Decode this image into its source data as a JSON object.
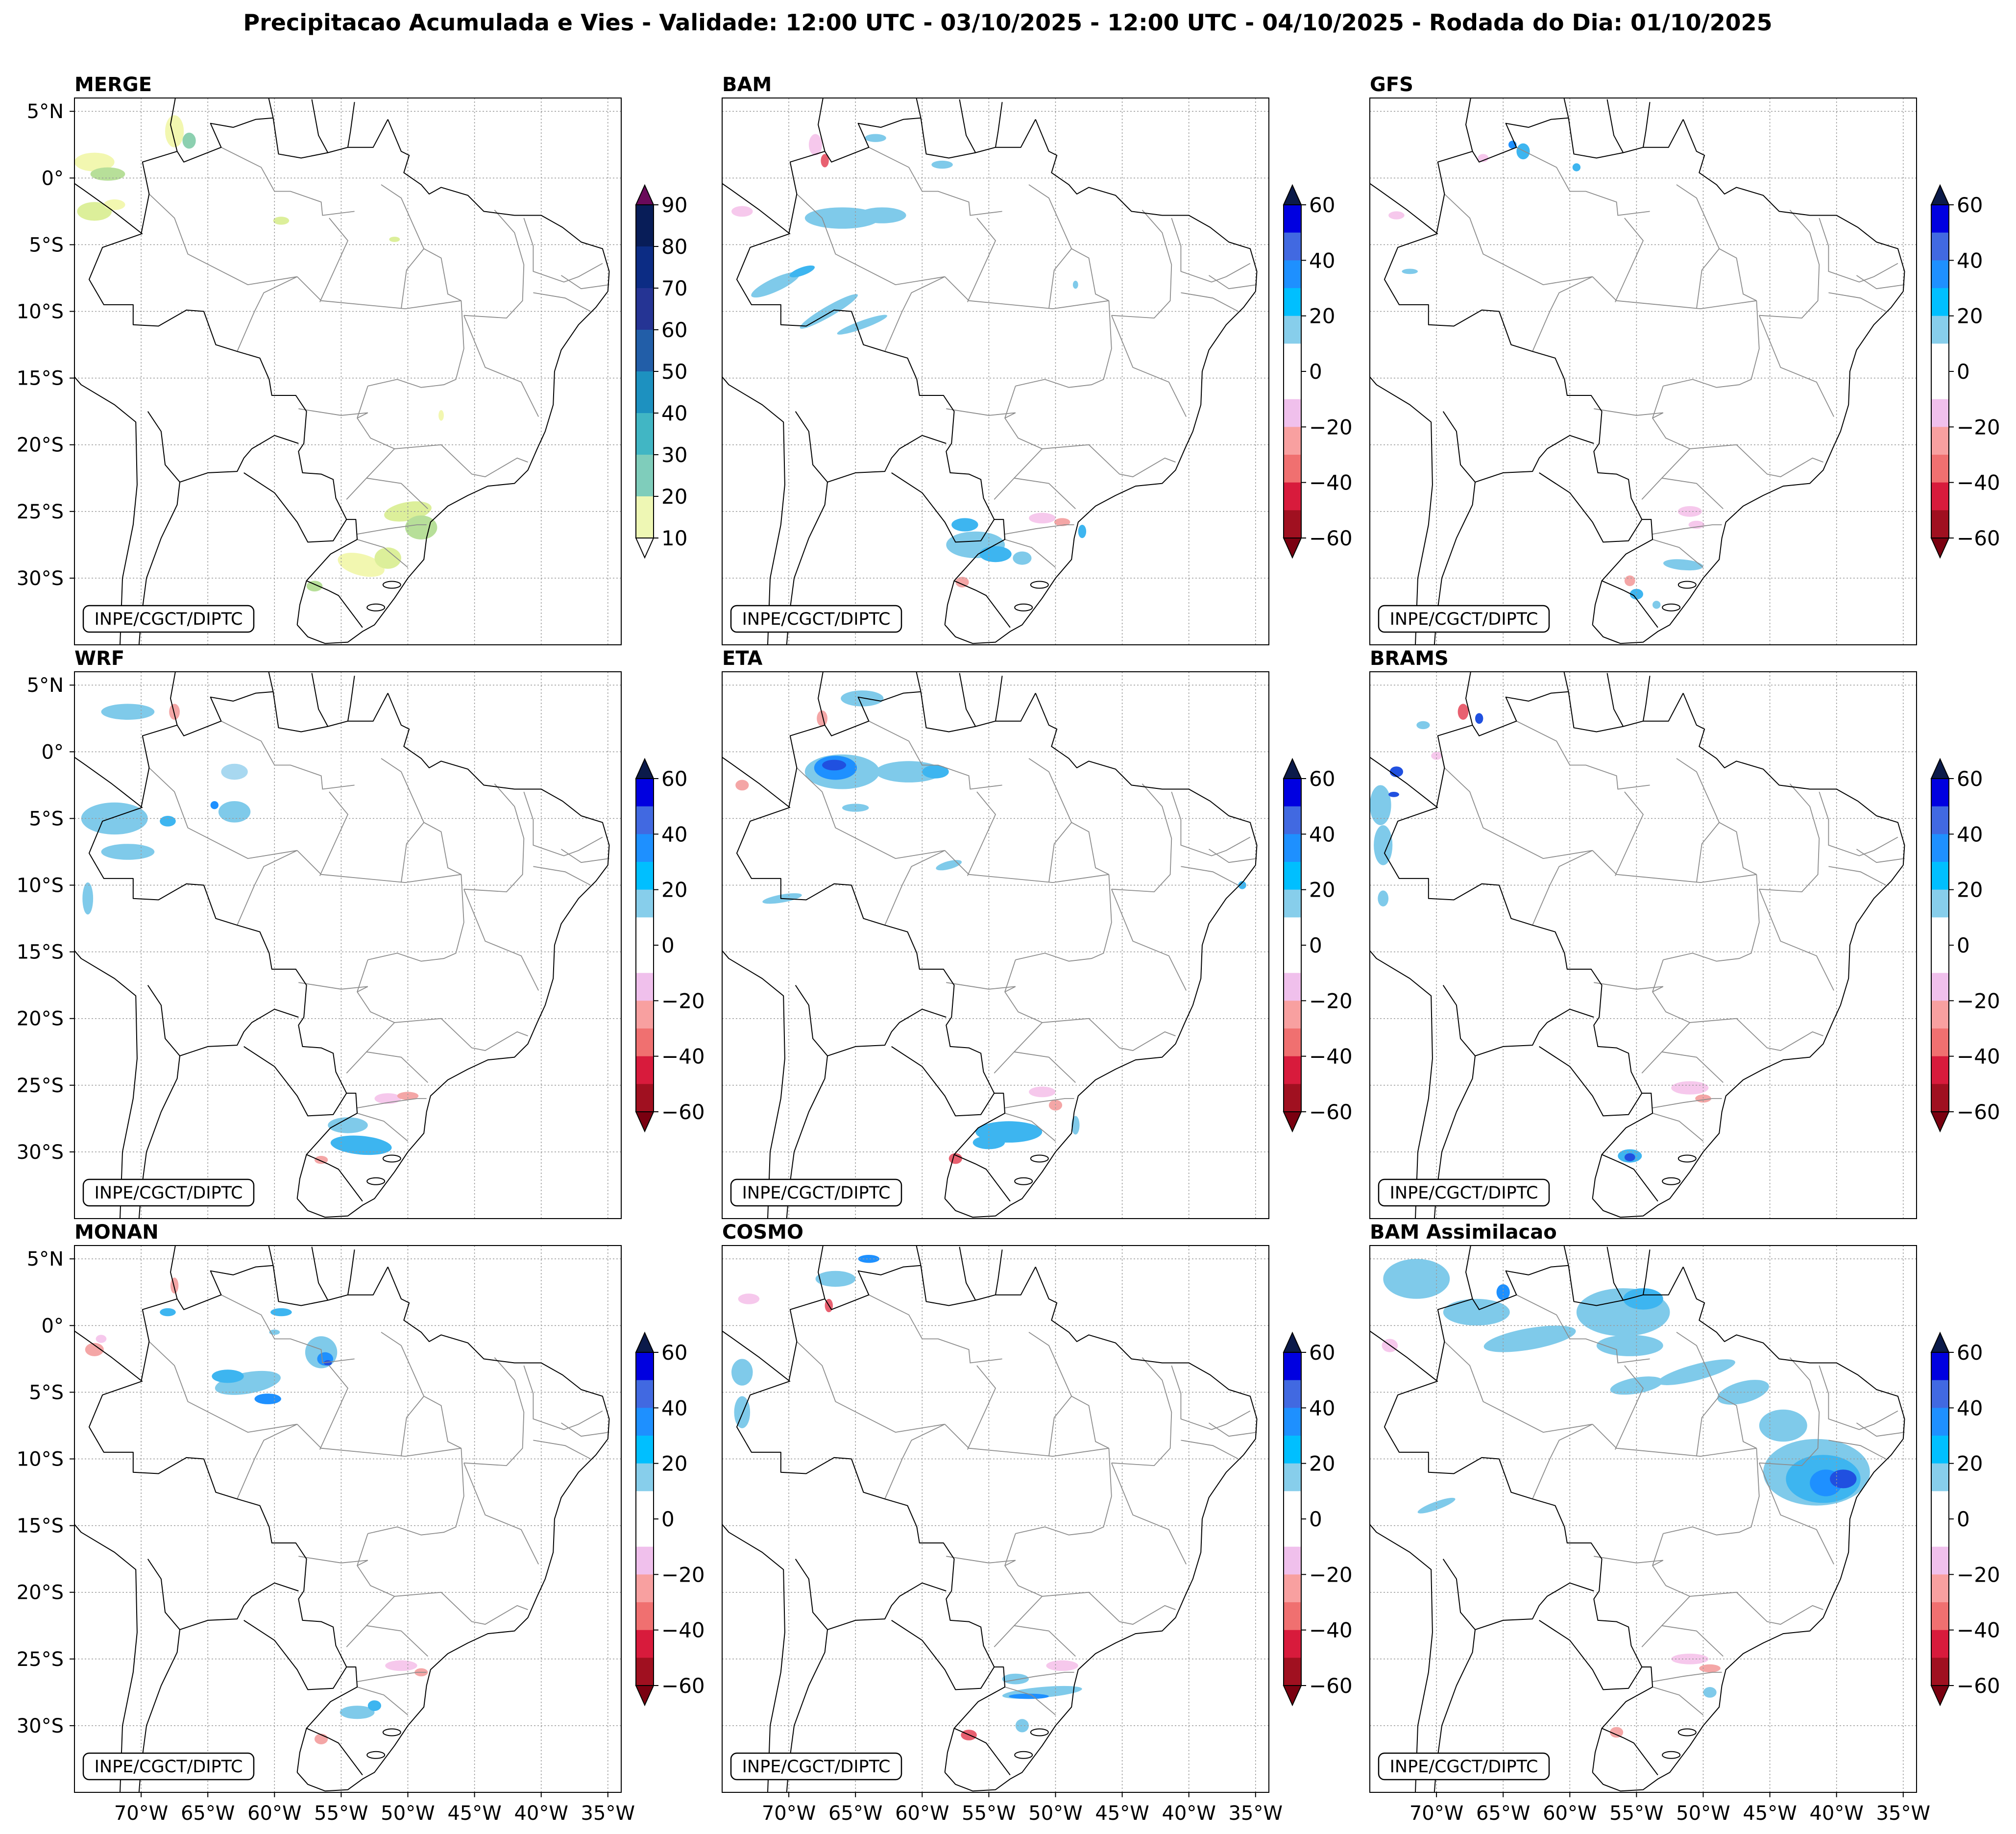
{
  "figure_title": "Precipitacao Acumulada e Vies - Validade: 12:00 UTC - 03/10/2025 - 12:00 UTC - 04/10/2025 - Rodada do Dia: 01/10/2025",
  "credit": "INPE/CGCT/DIPTC",
  "lat_ticks": [
    "5°N",
    "0°",
    "5°S",
    "10°S",
    "15°S",
    "20°S",
    "25°S",
    "30°S"
  ],
  "lon_ticks": [
    "70°W",
    "65°W",
    "60°W",
    "55°W",
    "50°W",
    "45°W",
    "40°W",
    "35°W"
  ],
  "precip_colorbar": {
    "ticks": [
      "90",
      "80",
      "70",
      "60",
      "50",
      "40",
      "30",
      "20",
      "10"
    ],
    "colors": [
      "#ffffcc",
      "#d9f0a3",
      "#a1dab4",
      "#7fcdbb",
      "#41b6c4",
      "#1d91c0",
      "#225ea8",
      "#253494",
      "#0c2c84",
      "#081d58"
    ],
    "over_color": "#6a0a5a",
    "under_color": "#ffffff"
  },
  "bias_colorbar": {
    "ticks": [
      "60",
      "40",
      "20",
      "0",
      "-20",
      "-40",
      "-60"
    ],
    "colors_top_to_bottom": [
      "#0000e0",
      "#4169e1",
      "#1e90ff",
      "#00bfff",
      "#87ceeb",
      "#ffffff",
      "#ffffff",
      "#f0c0ec",
      "#f8a0a0",
      "#f07070",
      "#d81b3c",
      "#a01020"
    ],
    "over_color": "#0b1a4a",
    "under_color": "#7a0010"
  },
  "panels": [
    {
      "id": "merge",
      "title": "MERGE",
      "colorbar": "precip"
    },
    {
      "id": "bam",
      "title": "BAM",
      "colorbar": "bias"
    },
    {
      "id": "gfs",
      "title": "GFS",
      "colorbar": "bias"
    },
    {
      "id": "wrf",
      "title": "WRF",
      "colorbar": "bias"
    },
    {
      "id": "eta",
      "title": "ETA",
      "colorbar": "bias"
    },
    {
      "id": "brams",
      "title": "BRAMS",
      "colorbar": "bias"
    },
    {
      "id": "monan",
      "title": "MONAN",
      "colorbar": "bias"
    },
    {
      "id": "cosmo",
      "title": "COSMO",
      "colorbar": "bias"
    },
    {
      "id": "bam-assimilacao",
      "title": "BAM Assimilacao",
      "colorbar": "bias"
    }
  ]
}
